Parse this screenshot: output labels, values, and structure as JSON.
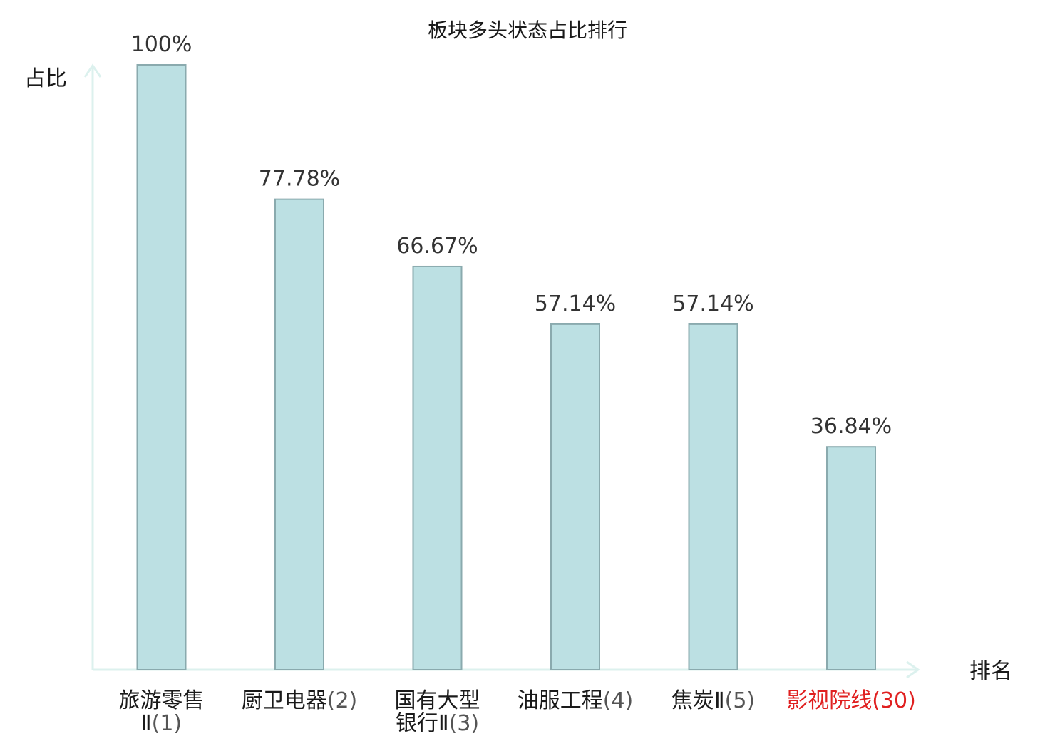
{
  "chart_data": {
    "type": "bar",
    "title": "板块多头状态占比排行",
    "ylabel": "占比",
    "xlabel": "排名",
    "ylim": [
      0,
      100
    ],
    "grid": false,
    "legend": "none",
    "categories": [
      {
        "lines": [
          "旅游零售",
          "Ⅱ(1)"
        ],
        "highlight": false
      },
      {
        "lines": [
          "厨卫电器(2)"
        ],
        "highlight": false
      },
      {
        "lines": [
          "国有大型",
          "银行Ⅱ(3)"
        ],
        "highlight": false
      },
      {
        "lines": [
          "油服工程(4)"
        ],
        "highlight": false
      },
      {
        "lines": [
          "焦炭Ⅱ(5)"
        ],
        "highlight": false
      },
      {
        "lines": [
          "影视院线(30)"
        ],
        "highlight": true
      }
    ],
    "values": [
      100,
      77.78,
      66.67,
      57.14,
      57.14,
      36.84
    ],
    "value_labels": [
      "100%",
      "77.78%",
      "66.67%",
      "57.14%",
      "57.14%",
      "36.84%"
    ],
    "colors": {
      "bar_fill": "#bce0e3",
      "bar_stroke": "#8aaaae",
      "axis": "#dcf1ee",
      "highlight_text": "#e02020"
    }
  }
}
